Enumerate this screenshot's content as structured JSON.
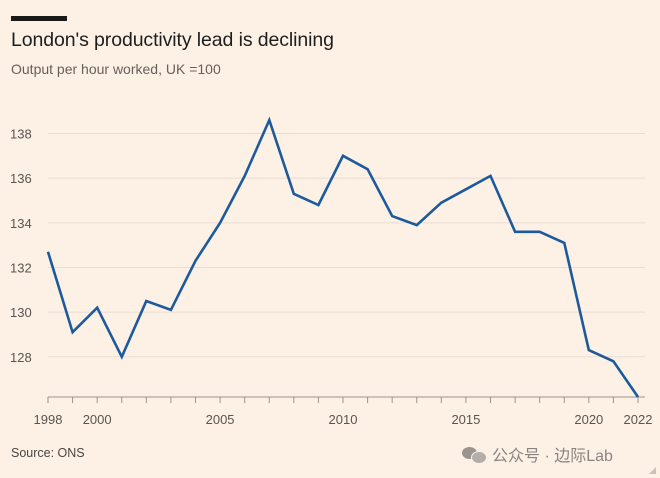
{
  "header": {
    "title": "London's productivity lead is declining",
    "subtitle": "Output per hour worked, UK =100"
  },
  "footer": {
    "source": "Source: ONS",
    "watermark": "公众号 · 边际Lab"
  },
  "colors": {
    "background": "#fdf1e6",
    "line": "#1d5a9c",
    "grid": "#e8ddd3"
  },
  "chart_data": {
    "type": "line",
    "title": "London's productivity lead is declining",
    "subtitle": "Output per hour worked, UK =100",
    "xlim": [
      1998,
      2022
    ],
    "ylim": [
      126.2,
      139.5
    ],
    "yticks": [
      128,
      130,
      132,
      134,
      136,
      138
    ],
    "xticks": [
      1998,
      2000,
      2005,
      2010,
      2015,
      2020,
      2022
    ],
    "grid": true,
    "x": [
      1998,
      1999,
      2000,
      2001,
      2002,
      2003,
      2004,
      2005,
      2006,
      2007,
      2008,
      2009,
      2010,
      2011,
      2012,
      2013,
      2014,
      2015,
      2016,
      2017,
      2018,
      2019,
      2020,
      2021,
      2022
    ],
    "series": [
      {
        "values": [
          132.7,
          129.1,
          130.2,
          128.0,
          130.5,
          130.1,
          132.3,
          134.0,
          136.1,
          138.6,
          135.3,
          134.8,
          137.0,
          136.4,
          134.3,
          133.9,
          134.9,
          135.5,
          136.1,
          133.6,
          133.6,
          133.1,
          128.3,
          127.8,
          126.2
        ]
      }
    ]
  }
}
